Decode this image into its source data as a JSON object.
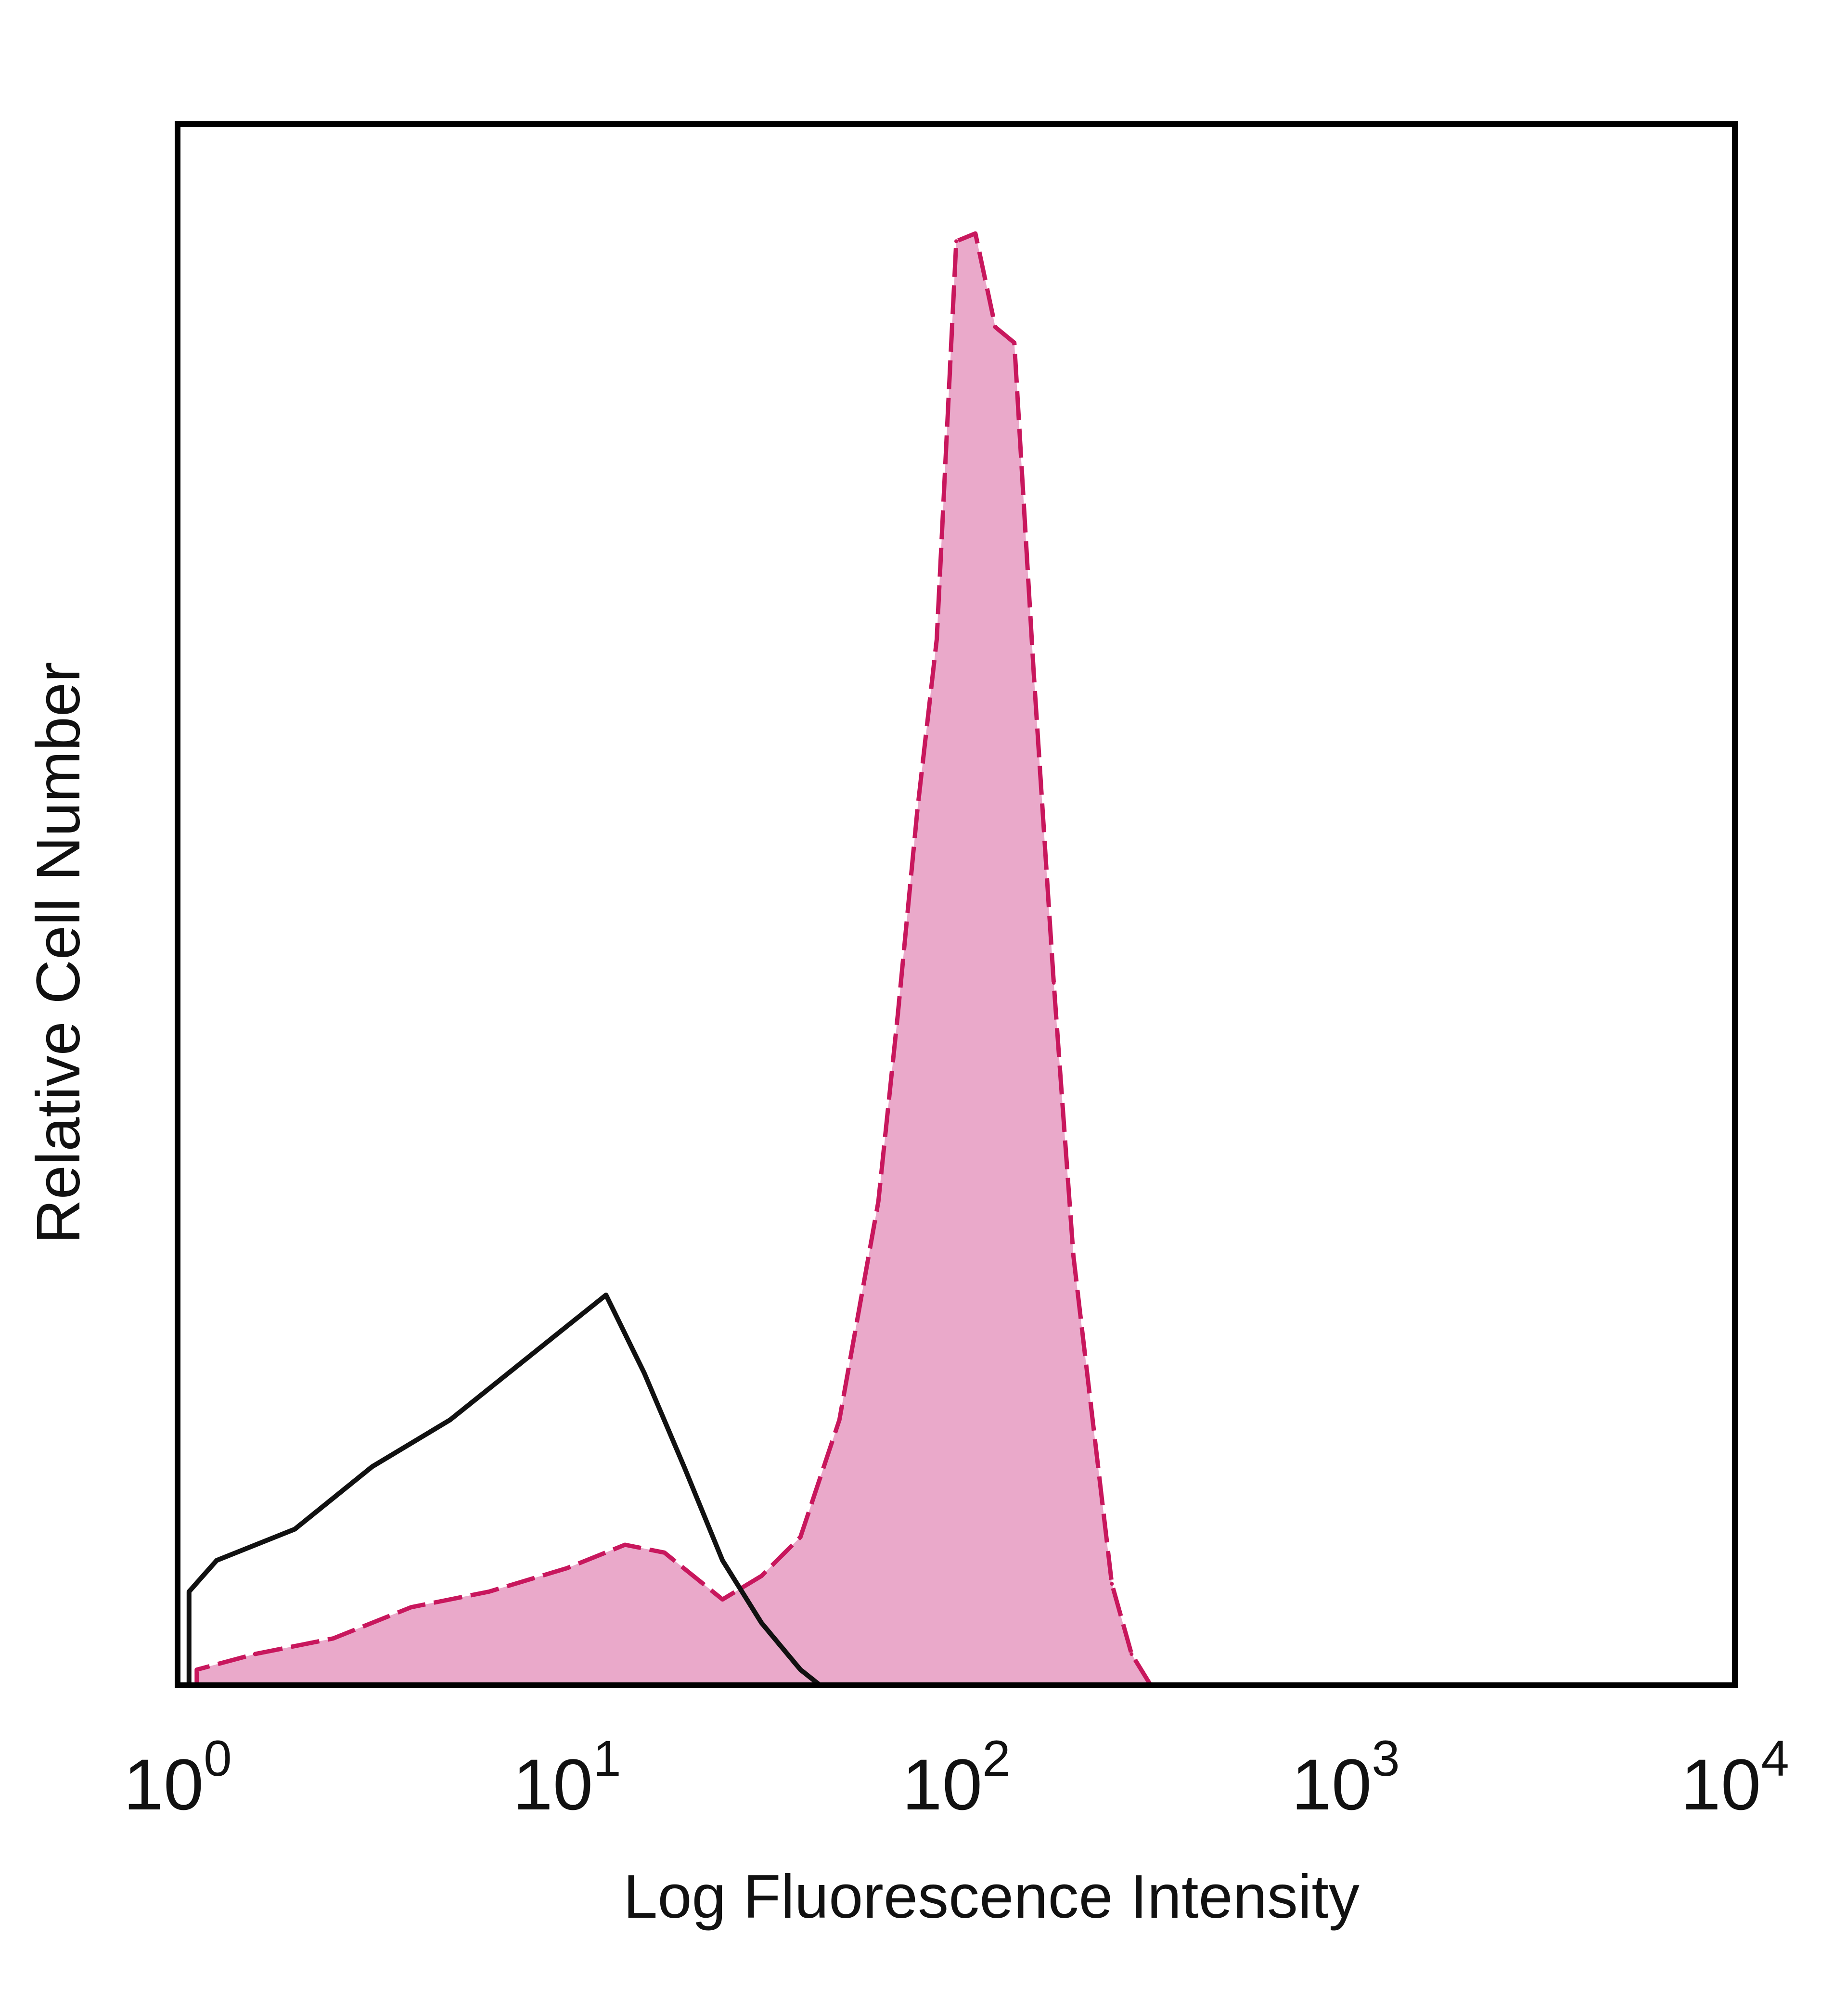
{
  "chart_data": {
    "type": "area",
    "title": "",
    "xlabel": "Log Fluorescence Intensity",
    "ylabel": "Relative Cell Number",
    "x_scale": "log",
    "xlim": [
      1,
      10000
    ],
    "ylim": [
      0,
      1
    ],
    "grid": false,
    "x_ticks": [
      {
        "base": "10",
        "exp": "0",
        "value": 1
      },
      {
        "base": "10",
        "exp": "1",
        "value": 10
      },
      {
        "base": "10",
        "exp": "2",
        "value": 100
      },
      {
        "base": "10",
        "exp": "3",
        "value": 1000
      },
      {
        "base": "10",
        "exp": "4",
        "value": 10000
      }
    ],
    "series": [
      {
        "style": "filled",
        "fill_color": "#eaa9ca",
        "line_color": "#c8175d",
        "x": [
          1.12,
          1.58,
          2.51,
          3.98,
          6.31,
          10,
          14.1,
          17.8,
          25.1,
          31.6,
          39.8,
          50.1,
          63.1,
          70.8,
          79.4,
          89.1,
          100,
          112,
          126,
          141,
          158,
          178,
          200,
          251,
          282,
          316
        ],
        "y": [
          0.01,
          0.02,
          0.03,
          0.05,
          0.06,
          0.075,
          0.09,
          0.085,
          0.055,
          0.07,
          0.095,
          0.17,
          0.31,
          0.43,
          0.56,
          0.67,
          0.925,
          0.93,
          0.87,
          0.86,
          0.65,
          0.45,
          0.275,
          0.065,
          0.02,
          0
        ]
      },
      {
        "style": "outline",
        "line_color": "#111111",
        "x": [
          1.07,
          1.26,
          2.0,
          3.16,
          5.01,
          7.94,
          10,
          12.6,
          15.8,
          20.0,
          25.1,
          31.6,
          39.8,
          44.7
        ],
        "y": [
          0.06,
          0.08,
          0.1,
          0.14,
          0.17,
          0.21,
          0.23,
          0.25,
          0.2,
          0.14,
          0.08,
          0.04,
          0.01,
          0
        ]
      }
    ]
  }
}
